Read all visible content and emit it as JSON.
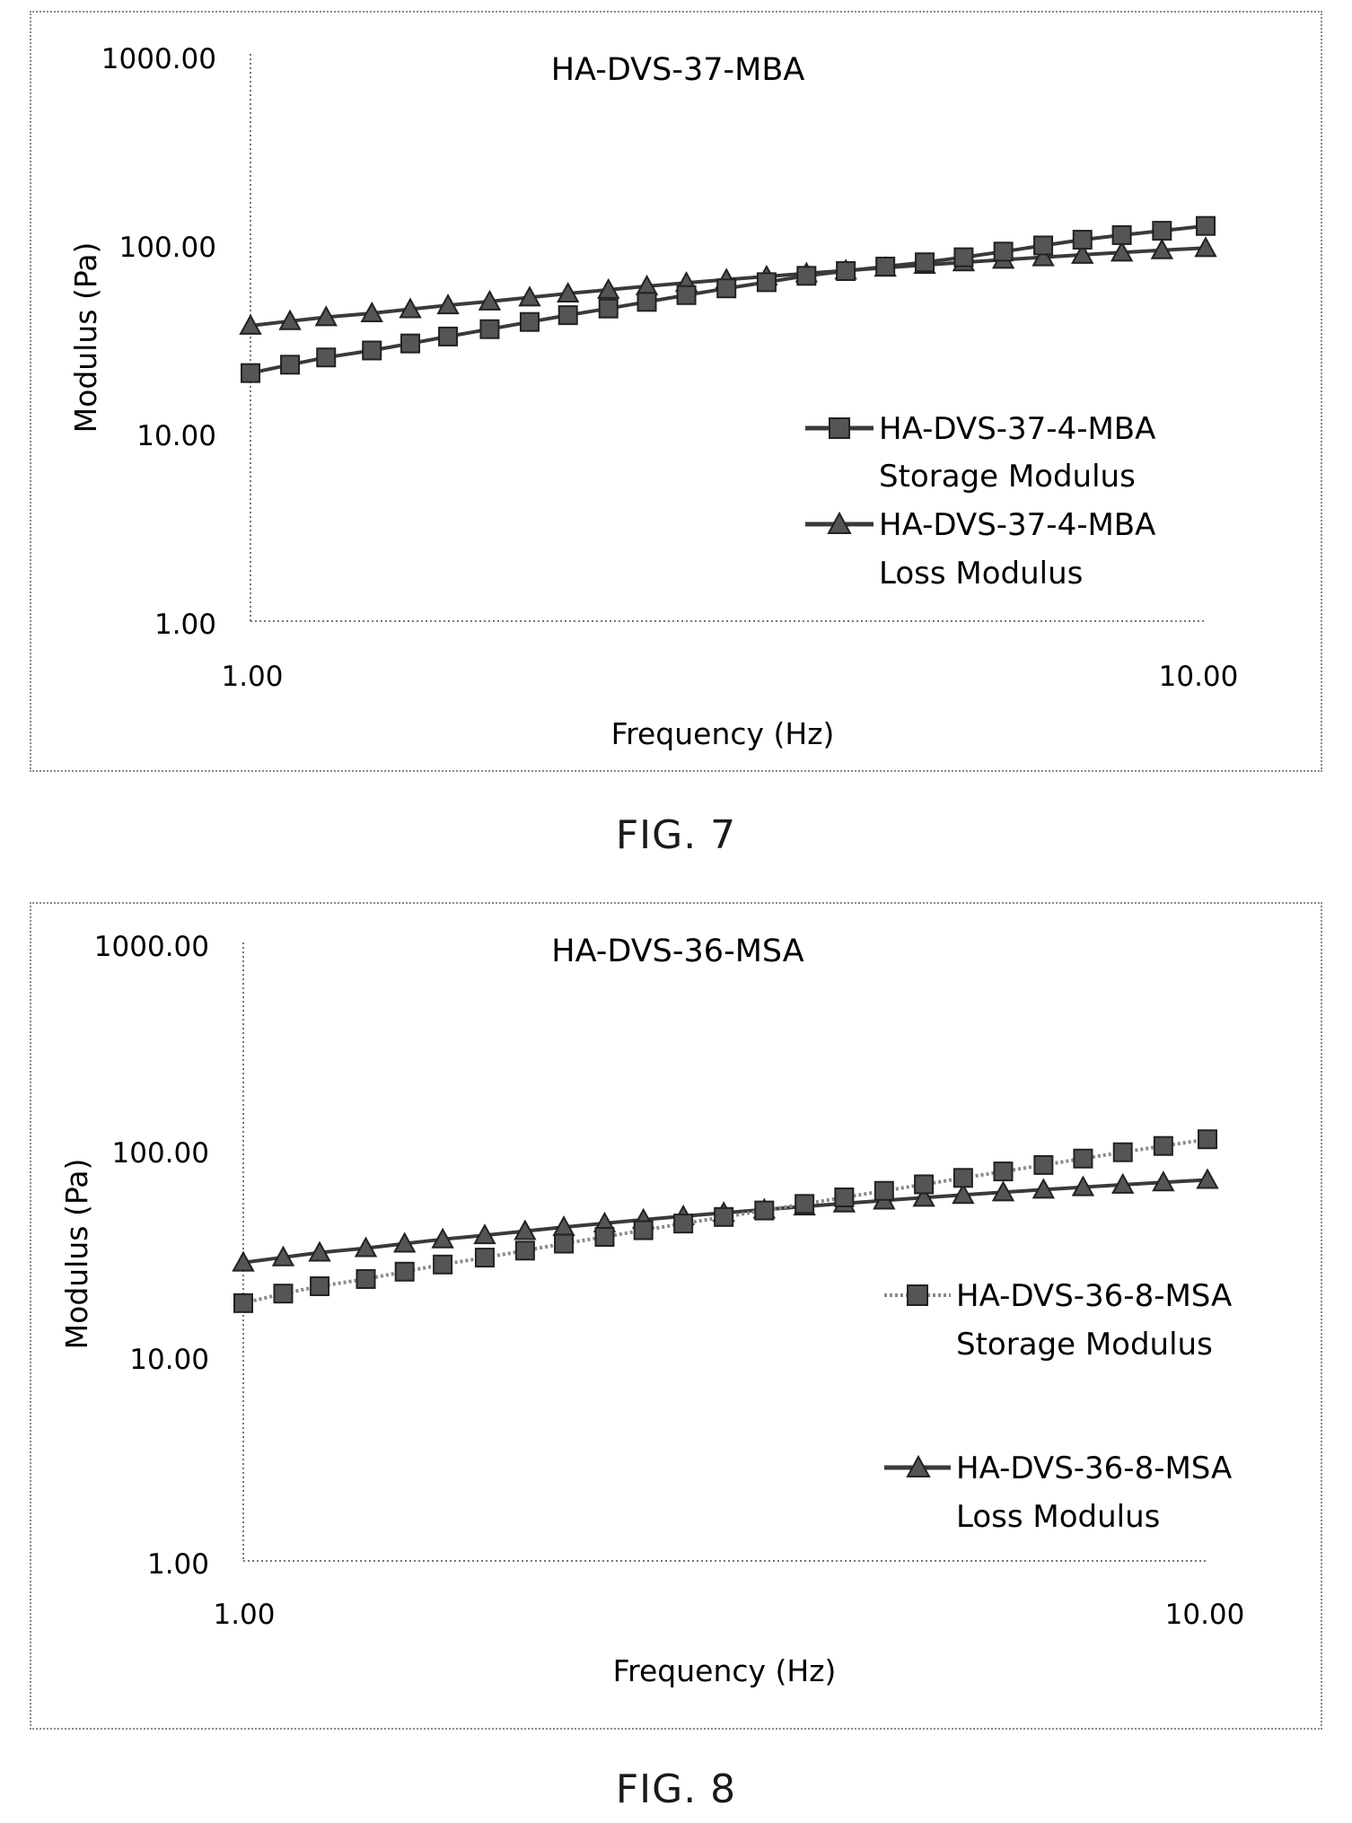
{
  "chart_data": [
    {
      "type": "line",
      "title": "HA-DVS-37-MBA",
      "xlabel": "Frequency (Hz)",
      "ylabel": "Modulus (Pa)",
      "x_scale": "log",
      "y_scale": "log",
      "xlim": [
        1,
        10
      ],
      "ylim": [
        1,
        1000
      ],
      "x_tick_labels": [
        "1.00",
        "10.00"
      ],
      "y_tick_labels": [
        "1.00",
        "10.00",
        "100.00",
        "1000.00"
      ],
      "legend_position": "right",
      "x": [
        1.0,
        1.1,
        1.2,
        1.34,
        1.47,
        1.61,
        1.78,
        1.96,
        2.15,
        2.37,
        2.6,
        2.86,
        3.15,
        3.47,
        3.82,
        4.2,
        4.62,
        5.08,
        5.58,
        6.14,
        6.76,
        7.43,
        8.17,
        9.0,
        10.0
      ],
      "series": [
        {
          "name": "HA-DVS-37-4-MBA Storage Modulus",
          "marker": "square",
          "line_style": "solid",
          "values": [
            20.5,
            22.7,
            24.8,
            27.0,
            29.4,
            32.0,
            35.0,
            38.2,
            41.5,
            45.0,
            48.8,
            53.0,
            57.5,
            62.0,
            67.0,
            71.0,
            75.0,
            79.0,
            84.0,
            90.0,
            97.0,
            104.0,
            110.0,
            116.0,
            123.0
          ]
        },
        {
          "name": "HA-DVS-37-4-MBA Loss Modulus",
          "marker": "triangle",
          "line_style": "solid",
          "values": [
            36.5,
            38.6,
            40.5,
            42.5,
            44.6,
            46.8,
            49.0,
            51.5,
            54.0,
            56.5,
            59.0,
            61.5,
            64.0,
            66.5,
            69.0,
            71.5,
            74.0,
            76.5,
            79.0,
            81.5,
            84.0,
            86.5,
            89.0,
            91.5,
            94.0
          ]
        }
      ]
    },
    {
      "type": "line",
      "title": "HA-DVS-36-MSA",
      "xlabel": "Frequency (Hz)",
      "ylabel": "Modulus (Pa)",
      "x_scale": "log",
      "y_scale": "log",
      "xlim": [
        1,
        10
      ],
      "ylim": [
        1,
        1000
      ],
      "x_tick_labels": [
        "1.00",
        "10.00"
      ],
      "y_tick_labels": [
        "1.00",
        "10.00",
        "100.00",
        "1000.00"
      ],
      "legend_position": "right",
      "x": [
        1.0,
        1.1,
        1.2,
        1.34,
        1.47,
        1.61,
        1.78,
        1.96,
        2.15,
        2.37,
        2.6,
        2.86,
        3.15,
        3.47,
        3.82,
        4.2,
        4.62,
        5.08,
        5.58,
        6.14,
        6.76,
        7.43,
        8.17,
        9.0,
        10.0
      ],
      "series": [
        {
          "name": "HA-DVS-36-8-MSA Storage Modulus",
          "marker": "square",
          "line_style": "dotted",
          "values": [
            17.8,
            19.8,
            21.5,
            23.3,
            25.3,
            27.4,
            29.6,
            32.0,
            34.6,
            37.3,
            40.2,
            43.3,
            46.6,
            50.1,
            53.9,
            58.0,
            62.4,
            67.1,
            72.1,
            77.5,
            83.3,
            89.5,
            96.0,
            103.0,
            111.0
          ]
        },
        {
          "name": "HA-DVS-36-8-MSA Loss Modulus",
          "marker": "triangle",
          "line_style": "solid",
          "values": [
            28.0,
            29.7,
            31.3,
            32.9,
            34.6,
            36.3,
            38.0,
            39.8,
            41.6,
            43.4,
            45.2,
            47.0,
            48.8,
            50.6,
            52.4,
            54.2,
            56.0,
            57.8,
            59.6,
            61.4,
            63.2,
            65.0,
            66.8,
            68.6,
            70.5
          ]
        }
      ]
    }
  ],
  "captions": [
    "FIG. 7",
    "FIG. 8"
  ],
  "charts": [
    {
      "title": "HA-DVS-37-MBA",
      "ylabel": "Modulus (Pa)",
      "xlabel": "Frequency (Hz)",
      "yticks": [
        "1000.00",
        "100.00",
        "10.00",
        "1.00"
      ],
      "xticks": [
        "1.00",
        "10.00"
      ],
      "legend": [
        {
          "line1": "HA-DVS-37-4-MBA",
          "line2": "Storage Modulus"
        },
        {
          "line1": "HA-DVS-37-4-MBA",
          "line2": "Loss Modulus"
        }
      ]
    },
    {
      "title": "HA-DVS-36-MSA",
      "ylabel": "Modulus (Pa)",
      "xlabel": "Frequency (Hz)",
      "yticks": [
        "1000.00",
        "100.00",
        "10.00",
        "1.00"
      ],
      "xticks": [
        "1.00",
        "10.00"
      ],
      "legend": [
        {
          "line1": "HA-DVS-36-8-MSA",
          "line2": "Storage Modulus"
        },
        {
          "line1": "HA-DVS-36-8-MSA",
          "line2": "Loss Modulus"
        }
      ]
    }
  ]
}
